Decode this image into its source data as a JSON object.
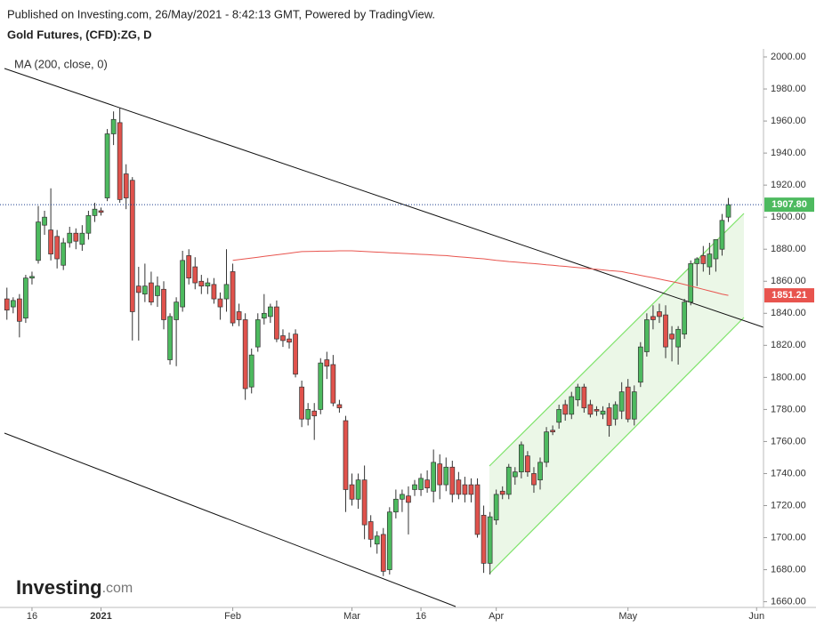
{
  "chart_data": {
    "type": "candlestick",
    "published": "Published on Investing.com, 26/May/2021 - 8:42:13 GMT, Powered by TradingView.",
    "title": "Gold Futures, (CFD):ZG, D",
    "watermark": {
      "main": "Investing",
      "suffix": ".com"
    },
    "up_color": "#4dba5f",
    "down_color": "#e0524c",
    "candles": [
      {
        "open": 1849,
        "high": 1856,
        "low": 1836,
        "close": 1842
      },
      {
        "open": 1844,
        "high": 1850,
        "low": 1840,
        "close": 1848
      },
      {
        "open": 1849,
        "high": 1852,
        "low": 1825,
        "close": 1835
      },
      {
        "open": 1837,
        "high": 1864,
        "low": 1834,
        "close": 1862
      },
      {
        "open": 1862,
        "high": 1866,
        "low": 1858,
        "close": 1863
      },
      {
        "open": 1873,
        "high": 1907,
        "low": 1871,
        "close": 1897
      },
      {
        "open": 1895,
        "high": 1904,
        "low": 1889,
        "close": 1900
      },
      {
        "open": 1892,
        "high": 1918,
        "low": 1873,
        "close": 1877
      },
      {
        "open": 1888,
        "high": 1892,
        "low": 1868,
        "close": 1874
      },
      {
        "open": 1870,
        "high": 1887,
        "low": 1867,
        "close": 1884
      },
      {
        "open": 1884,
        "high": 1894,
        "low": 1881,
        "close": 1890
      },
      {
        "open": 1890,
        "high": 1893,
        "low": 1880,
        "close": 1885
      },
      {
        "open": 1883,
        "high": 1895,
        "low": 1879,
        "close": 1890
      },
      {
        "open": 1890,
        "high": 1904,
        "low": 1886,
        "close": 1901
      },
      {
        "open": 1901,
        "high": 1909,
        "low": 1897,
        "close": 1905
      },
      {
        "open": 1904,
        "high": 1906,
        "low": 1901,
        "close": 1903
      },
      {
        "open": 1912,
        "high": 1955,
        "low": 1910,
        "close": 1952
      },
      {
        "open": 1952,
        "high": 1966,
        "low": 1945,
        "close": 1961
      },
      {
        "open": 1959,
        "high": 1968,
        "low": 1909,
        "close": 1911
      },
      {
        "open": 1927,
        "high": 1933,
        "low": 1905,
        "close": 1912
      },
      {
        "open": 1923,
        "high": 1925,
        "low": 1823,
        "close": 1841
      },
      {
        "open": 1857,
        "high": 1869,
        "low": 1823,
        "close": 1853
      },
      {
        "open": 1852,
        "high": 1871,
        "low": 1847,
        "close": 1857
      },
      {
        "open": 1859,
        "high": 1866,
        "low": 1845,
        "close": 1847
      },
      {
        "open": 1851,
        "high": 1863,
        "low": 1844,
        "close": 1857
      },
      {
        "open": 1855,
        "high": 1860,
        "low": 1830,
        "close": 1836
      },
      {
        "open": 1811,
        "high": 1840,
        "low": 1808,
        "close": 1838
      },
      {
        "open": 1836,
        "high": 1850,
        "low": 1807,
        "close": 1847
      },
      {
        "open": 1844,
        "high": 1879,
        "low": 1841,
        "close": 1873
      },
      {
        "open": 1876,
        "high": 1880,
        "low": 1858,
        "close": 1862
      },
      {
        "open": 1869,
        "high": 1875,
        "low": 1855,
        "close": 1859
      },
      {
        "open": 1860,
        "high": 1864,
        "low": 1852,
        "close": 1857
      },
      {
        "open": 1857,
        "high": 1862,
        "low": 1852,
        "close": 1859
      },
      {
        "open": 1858,
        "high": 1862,
        "low": 1846,
        "close": 1849
      },
      {
        "open": 1849,
        "high": 1853,
        "low": 1836,
        "close": 1844
      },
      {
        "open": 1849,
        "high": 1880,
        "low": 1841,
        "close": 1858
      },
      {
        "open": 1866,
        "high": 1871,
        "low": 1832,
        "close": 1834
      },
      {
        "open": 1841,
        "high": 1846,
        "low": 1832,
        "close": 1836
      },
      {
        "open": 1836,
        "high": 1840,
        "low": 1786,
        "close": 1793
      },
      {
        "open": 1794,
        "high": 1818,
        "low": 1790,
        "close": 1814
      },
      {
        "open": 1819,
        "high": 1840,
        "low": 1816,
        "close": 1836
      },
      {
        "open": 1837,
        "high": 1852,
        "low": 1833,
        "close": 1840
      },
      {
        "open": 1838,
        "high": 1846,
        "low": 1834,
        "close": 1844
      },
      {
        "open": 1844,
        "high": 1848,
        "low": 1822,
        "close": 1824
      },
      {
        "open": 1826,
        "high": 1830,
        "low": 1819,
        "close": 1823
      },
      {
        "open": 1824,
        "high": 1828,
        "low": 1818,
        "close": 1822
      },
      {
        "open": 1827,
        "high": 1830,
        "low": 1800,
        "close": 1802
      },
      {
        "open": 1794,
        "high": 1798,
        "low": 1769,
        "close": 1774
      },
      {
        "open": 1774,
        "high": 1784,
        "low": 1770,
        "close": 1780
      },
      {
        "open": 1779,
        "high": 1784,
        "low": 1761,
        "close": 1776
      },
      {
        "open": 1780,
        "high": 1812,
        "low": 1777,
        "close": 1809
      },
      {
        "open": 1811,
        "high": 1816,
        "low": 1799,
        "close": 1807
      },
      {
        "open": 1808,
        "high": 1814,
        "low": 1782,
        "close": 1784
      },
      {
        "open": 1783,
        "high": 1786,
        "low": 1778,
        "close": 1781
      },
      {
        "open": 1773,
        "high": 1776,
        "low": 1716,
        "close": 1730
      },
      {
        "open": 1733,
        "high": 1740,
        "low": 1720,
        "close": 1724
      },
      {
        "open": 1724,
        "high": 1740,
        "low": 1718,
        "close": 1736
      },
      {
        "open": 1736,
        "high": 1745,
        "low": 1699,
        "close": 1708
      },
      {
        "open": 1710,
        "high": 1714,
        "low": 1694,
        "close": 1699
      },
      {
        "open": 1696,
        "high": 1704,
        "low": 1690,
        "close": 1701
      },
      {
        "open": 1702,
        "high": 1706,
        "low": 1676,
        "close": 1679
      },
      {
        "open": 1680,
        "high": 1719,
        "low": 1677,
        "close": 1716
      },
      {
        "open": 1716,
        "high": 1730,
        "low": 1712,
        "close": 1724
      },
      {
        "open": 1724,
        "high": 1730,
        "low": 1716,
        "close": 1727
      },
      {
        "open": 1726,
        "high": 1732,
        "low": 1702,
        "close": 1722
      },
      {
        "open": 1730,
        "high": 1736,
        "low": 1726,
        "close": 1733
      },
      {
        "open": 1730,
        "high": 1740,
        "low": 1726,
        "close": 1737
      },
      {
        "open": 1736,
        "high": 1742,
        "low": 1728,
        "close": 1731
      },
      {
        "open": 1729,
        "high": 1755,
        "low": 1722,
        "close": 1747
      },
      {
        "open": 1746,
        "high": 1752,
        "low": 1724,
        "close": 1733
      },
      {
        "open": 1733,
        "high": 1750,
        "low": 1729,
        "close": 1744
      },
      {
        "open": 1744,
        "high": 1748,
        "low": 1722,
        "close": 1727
      },
      {
        "open": 1736,
        "high": 1741,
        "low": 1724,
        "close": 1727
      },
      {
        "open": 1733,
        "high": 1738,
        "low": 1722,
        "close": 1727
      },
      {
        "open": 1733,
        "high": 1737,
        "low": 1722,
        "close": 1727
      },
      {
        "open": 1733,
        "high": 1737,
        "low": 1700,
        "close": 1702
      },
      {
        "open": 1714,
        "high": 1720,
        "low": 1678,
        "close": 1684
      },
      {
        "open": 1684,
        "high": 1716,
        "low": 1677,
        "close": 1713
      },
      {
        "open": 1711,
        "high": 1730,
        "low": 1708,
        "close": 1727
      },
      {
        "open": 1729,
        "high": 1732,
        "low": 1724,
        "close": 1727
      },
      {
        "open": 1727,
        "high": 1746,
        "low": 1724,
        "close": 1744
      },
      {
        "open": 1738,
        "high": 1744,
        "low": 1733,
        "close": 1741
      },
      {
        "open": 1741,
        "high": 1760,
        "low": 1737,
        "close": 1758
      },
      {
        "open": 1751,
        "high": 1754,
        "low": 1738,
        "close": 1741
      },
      {
        "open": 1740,
        "high": 1744,
        "low": 1728,
        "close": 1733
      },
      {
        "open": 1736,
        "high": 1750,
        "low": 1730,
        "close": 1747
      },
      {
        "open": 1747,
        "high": 1769,
        "low": 1744,
        "close": 1766
      },
      {
        "open": 1767,
        "high": 1770,
        "low": 1764,
        "close": 1766
      },
      {
        "open": 1772,
        "high": 1783,
        "low": 1768,
        "close": 1780
      },
      {
        "open": 1783,
        "high": 1786,
        "low": 1773,
        "close": 1777
      },
      {
        "open": 1777,
        "high": 1791,
        "low": 1774,
        "close": 1788
      },
      {
        "open": 1786,
        "high": 1796,
        "low": 1782,
        "close": 1794
      },
      {
        "open": 1794,
        "high": 1796,
        "low": 1778,
        "close": 1781
      },
      {
        "open": 1783,
        "high": 1786,
        "low": 1775,
        "close": 1777
      },
      {
        "open": 1780,
        "high": 1782,
        "low": 1776,
        "close": 1779
      },
      {
        "open": 1777,
        "high": 1782,
        "low": 1774,
        "close": 1779
      },
      {
        "open": 1781,
        "high": 1784,
        "low": 1763,
        "close": 1770
      },
      {
        "open": 1774,
        "high": 1785,
        "low": 1770,
        "close": 1783
      },
      {
        "open": 1779,
        "high": 1797,
        "low": 1774,
        "close": 1791
      },
      {
        "open": 1794,
        "high": 1799,
        "low": 1772,
        "close": 1774
      },
      {
        "open": 1774,
        "high": 1795,
        "low": 1770,
        "close": 1791
      },
      {
        "open": 1797,
        "high": 1822,
        "low": 1794,
        "close": 1819
      },
      {
        "open": 1816,
        "high": 1840,
        "low": 1813,
        "close": 1836
      },
      {
        "open": 1838,
        "high": 1845,
        "low": 1830,
        "close": 1836
      },
      {
        "open": 1841,
        "high": 1846,
        "low": 1834,
        "close": 1838
      },
      {
        "open": 1839,
        "high": 1845,
        "low": 1812,
        "close": 1819
      },
      {
        "open": 1827,
        "high": 1832,
        "low": 1810,
        "close": 1824
      },
      {
        "open": 1819,
        "high": 1832,
        "low": 1808,
        "close": 1830
      },
      {
        "open": 1827,
        "high": 1849,
        "low": 1824,
        "close": 1847
      },
      {
        "open": 1847,
        "high": 1873,
        "low": 1845,
        "close": 1871
      },
      {
        "open": 1871,
        "high": 1875,
        "low": 1857,
        "close": 1874
      },
      {
        "open": 1876,
        "high": 1882,
        "low": 1866,
        "close": 1871
      },
      {
        "open": 1869,
        "high": 1884,
        "low": 1864,
        "close": 1877
      },
      {
        "open": 1874,
        "high": 1886,
        "low": 1866,
        "close": 1886
      },
      {
        "open": 1880,
        "high": 1902,
        "low": 1876,
        "close": 1898
      },
      {
        "open": 1900,
        "high": 1912,
        "low": 1897,
        "close": 1907.8
      }
    ],
    "series": [
      {
        "name": "MA (200, close, 0)",
        "color": "#e8544e",
        "last_label": "1851.21",
        "values": [
          null,
          null,
          null,
          null,
          null,
          null,
          null,
          null,
          null,
          null,
          null,
          null,
          null,
          null,
          null,
          null,
          null,
          null,
          null,
          null,
          null,
          null,
          null,
          null,
          null,
          null,
          null,
          null,
          null,
          null,
          null,
          null,
          null,
          null,
          null,
          null,
          1873,
          1873.5,
          1874,
          1874.5,
          1875,
          1875.5,
          1876,
          1876.5,
          1877,
          1877.5,
          1878,
          1878.5,
          1878.6,
          1878.7,
          1878.8,
          1878.8,
          1878.9,
          1879,
          1879,
          1879,
          1878.8,
          1878.6,
          1878.4,
          1878.2,
          1878,
          1877.8,
          1877.6,
          1877.4,
          1877.2,
          1877,
          1876.8,
          1876.6,
          1876.4,
          1876.2,
          1876,
          1875.6,
          1875.3,
          1875,
          1874.6,
          1874.3,
          1874,
          1873.5,
          1873,
          1872.7,
          1872.3,
          1872,
          1871.7,
          1871.3,
          1871,
          1870.7,
          1870.3,
          1870,
          1869.6,
          1869.3,
          1868.9,
          1868.5,
          1868.2,
          1867.8,
          1867.5,
          1867.1,
          1866.7,
          1866.4,
          1866,
          1865.2,
          1864.5,
          1863.7,
          1862.9,
          1862.2,
          1861.4,
          1860.6,
          1859.8,
          1859,
          1858,
          1857,
          1856,
          1855,
          1854,
          1853,
          1852,
          1851.21
        ]
      }
    ],
    "last_price": {
      "value": 1907.8,
      "label": "1907.80"
    },
    "xlim": [
      -1.1,
      120.6
    ],
    "xticks": [
      {
        "value": 4,
        "label": "16"
      },
      {
        "value": 15,
        "label": "2021"
      },
      {
        "value": 36,
        "label": "Feb"
      },
      {
        "value": 55,
        "label": "Mar"
      },
      {
        "value": 66,
        "label": "16"
      },
      {
        "value": 78,
        "label": "Apr"
      },
      {
        "value": 99,
        "label": "May"
      },
      {
        "value": 119.5,
        "label": "Jun"
      }
    ],
    "ylim": [
      1657,
      2005
    ],
    "yticks": [
      {
        "value": 1660,
        "label": "1660.00"
      },
      {
        "value": 1680,
        "label": "1680.00"
      },
      {
        "value": 1700,
        "label": "1700.00"
      },
      {
        "value": 1720,
        "label": "1720.00"
      },
      {
        "value": 1740,
        "label": "1740.00"
      },
      {
        "value": 1760,
        "label": "1760.00"
      },
      {
        "value": 1780,
        "label": "1780.00"
      },
      {
        "value": 1800,
        "label": "1800.00"
      },
      {
        "value": 1820,
        "label": "1820.00"
      },
      {
        "value": 1840,
        "label": "1840.00"
      },
      {
        "value": 1860,
        "label": "1860.00"
      },
      {
        "value": 1880,
        "label": "1880.00"
      },
      {
        "value": 1900,
        "label": "1900.00"
      },
      {
        "value": 1920,
        "label": "1920.00"
      },
      {
        "value": 1940,
        "label": "1940.00"
      },
      {
        "value": 1960,
        "label": "1960.00"
      },
      {
        "value": 1980,
        "label": "1980.00"
      },
      {
        "value": 2000,
        "label": "2000.00"
      }
    ]
  }
}
